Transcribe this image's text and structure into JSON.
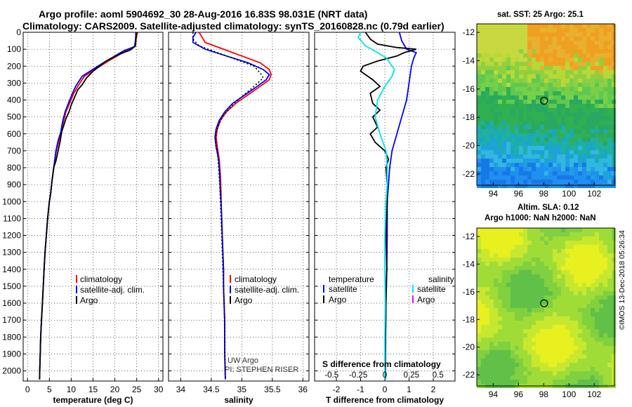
{
  "header": {
    "title_line1": "Argo profile: aoml 5904692_30 28-Aug-2016 16.83S 98.031E (NRT data)",
    "title_line2": "Climatology: CARS2009. Satellite-adjusted climatology: synTS_20160828.nc (0.79d earlier)"
  },
  "colors": {
    "climatology": "#ff0000",
    "satellite": "#0000ff",
    "argo": "#000000",
    "sat_salinity": "#00e5ee",
    "argo_salinity": "#ff00ff"
  },
  "chart_data": [
    {
      "type": "line",
      "id": "temperature",
      "xlabel": "temperature (deg C)",
      "ylabel": "",
      "xlim": [
        -1,
        31
      ],
      "ylim": [
        2060,
        0
      ],
      "xticks": [
        0,
        5,
        10,
        15,
        20,
        25,
        30
      ],
      "yticks": [
        0,
        100,
        200,
        300,
        400,
        500,
        600,
        700,
        800,
        900,
        1000,
        1100,
        1200,
        1300,
        1400,
        1500,
        1600,
        1700,
        1800,
        1900,
        2000
      ],
      "legend": [
        "climatology",
        "satellite-adj. clim.",
        "Argo"
      ],
      "series": [
        {
          "name": "climatology",
          "color": "#ff0000",
          "x": [
            25.2,
            25.0,
            24.8,
            24.6,
            22.5,
            20.5,
            18.5,
            16,
            13,
            11.5,
            10.6,
            9.8,
            8.8,
            8.2,
            7.8,
            7.2,
            6.6,
            6.0,
            5.6,
            5.3,
            5.0,
            4.6,
            4.3,
            4.0,
            3.8,
            3.6,
            3.4,
            3.2,
            3.1,
            3.0,
            2.9,
            2.85,
            2.8,
            2.75
          ],
          "y": [
            0,
            20,
            50,
            85,
            110,
            140,
            170,
            210,
            260,
            320,
            360,
            410,
            470,
            530,
            590,
            640,
            700,
            800,
            880,
            950,
            1000,
            1100,
            1200,
            1300,
            1400,
            1500,
            1600,
            1700,
            1750,
            1800,
            1900,
            1950,
            2000,
            2050
          ]
        },
        {
          "name": "satellite-adj. clim.",
          "color": "#0000ff",
          "x": [
            24.8,
            24.8,
            24.7,
            24.5,
            22.0,
            20.0,
            18.0,
            15.5,
            12.5,
            11.0,
            10.3,
            9.5,
            8.6,
            8.0,
            7.6,
            7.0,
            6.5,
            6.0,
            5.6,
            5.3,
            5.0,
            4.6,
            4.3,
            4.0,
            3.8,
            3.6,
            3.4,
            3.2,
            3.0,
            2.9,
            2.8,
            2.75
          ],
          "y": [
            0,
            20,
            50,
            85,
            110,
            140,
            170,
            210,
            260,
            320,
            360,
            410,
            470,
            530,
            590,
            640,
            700,
            800,
            880,
            950,
            1000,
            1100,
            1200,
            1300,
            1400,
            1500,
            1600,
            1700,
            1800,
            1900,
            2000,
            2050
          ]
        },
        {
          "name": "Argo",
          "color": "#000000",
          "x": [
            25.0,
            24.9,
            24.8,
            24.7,
            23.5,
            21.0,
            19.5,
            18.0,
            16.5,
            15.0,
            13.5,
            12.5,
            11.5,
            11.0,
            10.5,
            10.0,
            9.5,
            8.8,
            8.3,
            7.8,
            7.5,
            7.0,
            6.5,
            6.0,
            5.6,
            5.3,
            5.0,
            4.6,
            4.3,
            4.0,
            3.8,
            3.6,
            3.4,
            3.2,
            3.0,
            2.9,
            2.8,
            2.75
          ],
          "y": [
            0,
            20,
            50,
            80,
            105,
            130,
            150,
            170,
            200,
            230,
            270,
            310,
            340,
            370,
            400,
            430,
            470,
            510,
            550,
            590,
            640,
            700,
            760,
            800,
            880,
            950,
            1000,
            1100,
            1200,
            1300,
            1400,
            1500,
            1600,
            1700,
            1800,
            1900,
            2000,
            2050
          ]
        }
      ]
    },
    {
      "type": "line",
      "id": "salinity",
      "xlabel": "salinity",
      "ylabel": "",
      "xlim": [
        33.8,
        36.1
      ],
      "ylim": [
        2060,
        0
      ],
      "xticks": [
        34,
        34.5,
        35,
        35.5,
        36
      ],
      "legend": [
        "climatology",
        "satellite-adj. clim.",
        "Argo"
      ],
      "annotation": [
        "UW Argo",
        "PI: STEPHEN RISER"
      ],
      "series": [
        {
          "name": "climatology",
          "color": "#ff0000",
          "x": [
            34.3,
            34.35,
            34.4,
            34.7,
            35.0,
            35.3,
            35.45,
            35.48,
            35.45,
            35.3,
            35.1,
            34.9,
            34.75,
            34.65,
            34.6,
            34.58,
            34.6,
            34.63,
            34.65,
            34.66,
            34.66,
            34.67,
            34.68,
            34.69,
            34.7,
            34.7,
            34.71,
            34.72,
            34.72,
            34.73
          ],
          "y": [
            0,
            30,
            60,
            100,
            140,
            180,
            220,
            250,
            280,
            320,
            370,
            420,
            470,
            520,
            570,
            620,
            680,
            750,
            850,
            950,
            1000,
            1100,
            1200,
            1300,
            1400,
            1500,
            1600,
            1700,
            1900,
            2050
          ]
        },
        {
          "name": "satellite-adj. clim.",
          "color": "#0000ff",
          "x": [
            34.25,
            34.2,
            34.2,
            34.4,
            34.75,
            35.1,
            35.35,
            35.45,
            35.4,
            35.25,
            35.05,
            34.85,
            34.72,
            34.63,
            34.58,
            34.56,
            34.58,
            34.62,
            34.64,
            34.65,
            34.66,
            34.67,
            34.68,
            34.69,
            34.7,
            34.7,
            34.71,
            34.72,
            34.72,
            34.73
          ],
          "y": [
            0,
            30,
            60,
            100,
            140,
            180,
            220,
            250,
            280,
            320,
            370,
            420,
            470,
            520,
            570,
            620,
            680,
            750,
            850,
            950,
            1000,
            1100,
            1200,
            1300,
            1400,
            1500,
            1600,
            1700,
            1900,
            2050
          ]
        },
        {
          "name": "Argo",
          "color": "#000000",
          "x": [
            34.2,
            34.2,
            34.3,
            34.6,
            34.9,
            35.2,
            35.3,
            35.35,
            35.2,
            35.0,
            34.85,
            34.7,
            34.63,
            34.58,
            34.57,
            34.6,
            34.62,
            34.64,
            34.65,
            34.66,
            34.67,
            34.68,
            34.69,
            34.7,
            34.71,
            34.72,
            34.73
          ],
          "y": [
            0,
            40,
            80,
            120,
            160,
            200,
            240,
            270,
            320,
            380,
            430,
            490,
            540,
            590,
            640,
            700,
            800,
            900,
            1000,
            1100,
            1200,
            1300,
            1400,
            1500,
            1600,
            1800,
            2050
          ]
        }
      ]
    },
    {
      "type": "line",
      "id": "difference",
      "xlabel": "T difference from climatology",
      "xlabel_top": "S difference from climatology",
      "xlim": [
        -2.9,
        2.9
      ],
      "ylim": [
        2060,
        0
      ],
      "xticks": [
        -2,
        -1,
        0,
        1,
        2
      ],
      "xticks_top": [
        -0.5,
        -0.25,
        0,
        0.25,
        0.5
      ],
      "xticklabels_top": [
        "-0.5",
        "-0.25",
        "0",
        "0.25",
        "0.5"
      ],
      "legend_left_title": "temperature",
      "legend_right_title": "salinity",
      "legend_left": [
        "satellite",
        "Argo"
      ],
      "legend_right": [
        "satellite",
        "Argo"
      ],
      "series": [
        {
          "name": "T satellite",
          "color": "#0000ff",
          "x": [
            0.6,
            0.7,
            0.9,
            1.3,
            1.2,
            1.1,
            1.0,
            0.9,
            0.7,
            0.5,
            0.3,
            0.2,
            0.15,
            0.1,
            0.1,
            0.08,
            0.05,
            0.05,
            0.03,
            0.02,
            0.02
          ],
          "y": [
            0,
            50,
            100,
            120,
            150,
            200,
            300,
            400,
            500,
            600,
            700,
            800,
            900,
            1000,
            1200,
            1400,
            1500,
            1600,
            1800,
            1900,
            2050
          ]
        },
        {
          "name": "T Argo",
          "color": "#000000",
          "x": [
            -0.8,
            -0.6,
            -0.3,
            0.5,
            1.3,
            0.8,
            0.5,
            -0.3,
            -0.9,
            -1.0,
            -0.5,
            -0.2,
            -0.6,
            -0.5,
            -0.2,
            -0.5,
            -0.3,
            -0.6,
            -0.4,
            0.0,
            0.15,
            0.05,
            0.1,
            0.1,
            0.05,
            0.08,
            0.05,
            0.03,
            0.02
          ],
          "y": [
            0,
            40,
            70,
            90,
            100,
            120,
            140,
            170,
            200,
            230,
            280,
            320,
            360,
            420,
            460,
            500,
            560,
            600,
            650,
            700,
            750,
            800,
            900,
            1000,
            1200,
            1400,
            1600,
            1800,
            2050
          ]
        },
        {
          "name": "S satellite",
          "color": "#00e5ee",
          "x": [
            -1.0,
            -1.1,
            -0.8,
            -0.3,
            0.05,
            0.2,
            0.4,
            0.3,
            0.0,
            -0.3,
            -0.4,
            -0.2,
            0.05,
            0.1,
            0.1,
            0.05,
            0.0,
            0.0,
            0.02,
            0.0,
            0.0
          ],
          "y": [
            0,
            30,
            80,
            120,
            150,
            180,
            220,
            260,
            320,
            400,
            500,
            600,
            700,
            800,
            900,
            1000,
            1200,
            1400,
            1600,
            1800,
            2050
          ]
        }
      ]
    }
  ],
  "maps": [
    {
      "id": "sst",
      "title": "sat. SST: 25 Argo: 25.1",
      "xticks": [
        94,
        96,
        98,
        100,
        102
      ],
      "yticks": [
        -12,
        -14,
        -16,
        -18,
        -20,
        -22
      ],
      "xlim": [
        92.7,
        103.6
      ],
      "ylim": [
        -22.8,
        -11.4
      ],
      "marker": [
        98.03,
        -16.83
      ]
    },
    {
      "id": "sla",
      "title_line1": "Altim. SLA: 0.12",
      "title_line2": "Argo h1000: NaN h2000: NaN",
      "xticks": [
        94,
        96,
        98,
        100,
        102
      ],
      "yticks": [
        -12,
        -14,
        -16,
        -18,
        -20,
        -22
      ],
      "xlim": [
        92.7,
        103.6
      ],
      "ylim": [
        -22.8,
        -11.4
      ],
      "marker": [
        98.03,
        -16.83
      ]
    }
  ],
  "stamp": "©IMOS 13-Dec-2018 05:26:34"
}
